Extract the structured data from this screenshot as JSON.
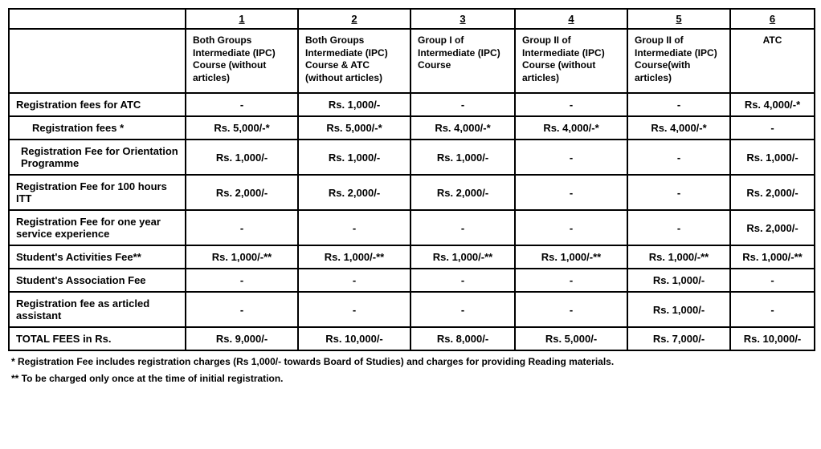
{
  "table": {
    "number_headers": [
      "1",
      "2",
      "3",
      "4",
      "5",
      "6"
    ],
    "column_headers": [
      "Both Groups Intermediate (IPC) Course (without articles)",
      "Both Groups Intermediate (IPC) Course & ATC (without articles)",
      "Group I of Intermediate (IPC) Course",
      "Group II of Intermediate (IPC) Course (without articles)",
      "Group II of Intermediate (IPC) Course(with articles)",
      "ATC"
    ],
    "rows": [
      {
        "label": "Registration fees for ATC",
        "indent": "none",
        "cells": [
          "-",
          "Rs. 1,000/-",
          "-",
          "-",
          "-",
          "Rs. 4,000/-*"
        ]
      },
      {
        "label": "Registration fees *",
        "indent": "indent",
        "cells": [
          "Rs. 5,000/-*",
          "Rs. 5,000/-*",
          "Rs. 4,000/-*",
          "Rs. 4,000/-*",
          "Rs. 4,000/-*",
          "-"
        ]
      },
      {
        "label": "Registration Fee for Orientation Programme",
        "indent": "small",
        "cells": [
          "Rs. 1,000/-",
          "Rs. 1,000/-",
          "Rs. 1,000/-",
          "-",
          "-",
          "Rs. 1,000/-"
        ]
      },
      {
        "label": "Registration Fee for 100 hours ITT",
        "indent": "none",
        "cells": [
          "Rs. 2,000/-",
          "Rs. 2,000/-",
          "Rs. 2,000/-",
          "-",
          "-",
          "Rs. 2,000/-"
        ]
      },
      {
        "label": "Registration Fee for one year service experience",
        "indent": "none",
        "cells": [
          "-",
          "-",
          "-",
          "-",
          "-",
          "Rs. 2,000/-"
        ]
      },
      {
        "label": "Student's Activities Fee**",
        "indent": "none",
        "cells": [
          "Rs. 1,000/-**",
          "Rs. 1,000/-**",
          "Rs. 1,000/-**",
          "Rs. 1,000/-**",
          "Rs. 1,000/-**",
          "Rs. 1,000/-**"
        ]
      },
      {
        "label": "Student's Association Fee",
        "indent": "none",
        "cells": [
          "-",
          "-",
          "-",
          "-",
          "Rs. 1,000/-",
          "-"
        ]
      },
      {
        "label": "Registration fee as articled assistant",
        "indent": "none",
        "cells": [
          "-",
          "-",
          "-",
          "-",
          "Rs. 1,000/-",
          "-"
        ]
      },
      {
        "label": "TOTAL FEES in Rs.",
        "indent": "none",
        "cells": [
          "Rs. 9,000/-",
          "Rs. 10,000/-",
          "Rs. 8,000/-",
          "Rs. 5,000/-",
          "Rs. 7,000/-",
          "Rs. 10,000/-"
        ]
      }
    ]
  },
  "footnotes": {
    "line1": "* Registration Fee includes registration charges (Rs 1,000/- towards Board of Studies) and charges for providing Reading materials.",
    "line2": "** To be charged only once at the time of initial registration."
  },
  "styling": {
    "border_color": "#000000",
    "background_color": "#ffffff",
    "text_color": "#000000",
    "font_family": "Arial, sans-serif",
    "header_fontsize": 13,
    "cell_fontsize": 13,
    "footnote_fontsize": 12,
    "border_width": 2
  }
}
